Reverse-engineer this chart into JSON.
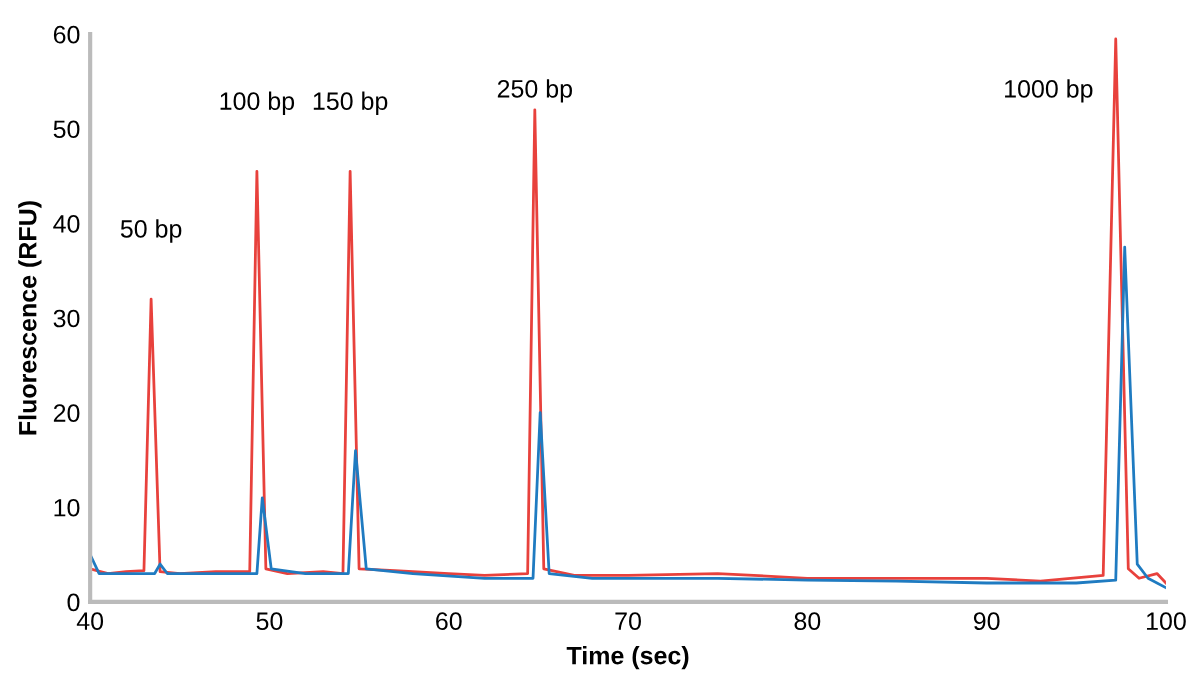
{
  "chart_data": {
    "type": "line",
    "xlabel": "Time (sec)",
    "ylabel": "Fluorescence (RFU)",
    "xlim": [
      40,
      100
    ],
    "xticks": [
      40,
      50,
      60,
      70,
      80,
      90,
      100
    ],
    "ylim": [
      0,
      60
    ],
    "yticks": [
      0,
      10,
      20,
      30,
      40,
      50,
      60
    ],
    "grid": false,
    "legend": false,
    "marker": "none",
    "line_style": "solid",
    "series": [
      {
        "color": "#e8413c",
        "x": [
          40,
          41,
          42,
          43,
          43.4,
          43.9,
          45,
          47,
          48.9,
          49.3,
          49.8,
          51,
          53,
          54.1,
          54.5,
          55,
          57,
          60,
          62,
          64.4,
          64.8,
          65.3,
          67,
          70,
          75,
          80,
          85,
          90,
          93,
          96.5,
          97.2,
          97.9,
          98.5,
          99.5,
          100
        ],
        "values": [
          3.5,
          3,
          3.2,
          3.3,
          32,
          3.2,
          3,
          3.2,
          3.2,
          45.5,
          3.5,
          3,
          3.2,
          3,
          45.5,
          3.5,
          3.3,
          3,
          2.8,
          3,
          52,
          3.5,
          2.8,
          2.8,
          3,
          2.5,
          2.5,
          2.5,
          2.2,
          2.8,
          59.5,
          3.5,
          2.5,
          3,
          2
        ]
      },
      {
        "color": "#1f7bc1",
        "x": [
          40,
          40.5,
          42,
          43.6,
          43.9,
          44.3,
          47,
          49.3,
          49.6,
          50.1,
          52,
          54.4,
          54.8,
          55.4,
          58,
          62,
          64.7,
          65.1,
          65.6,
          68,
          75,
          80,
          85,
          90,
          95,
          97.2,
          97.7,
          98.4,
          99,
          100
        ],
        "values": [
          5,
          3,
          3,
          3,
          4,
          3,
          3,
          3,
          11,
          3.5,
          3,
          3,
          16,
          3.5,
          3,
          2.5,
          2.5,
          20,
          3,
          2.5,
          2.5,
          2.3,
          2.2,
          2,
          2,
          2.3,
          37.5,
          4,
          2.5,
          1.5
        ]
      }
    ],
    "annotations": [
      {
        "text": "50 bp",
        "x": 43.4,
        "y": 32
      },
      {
        "text": "100 bp",
        "x": 49.3,
        "y": 45.5
      },
      {
        "text": "150 bp",
        "x": 54.5,
        "y": 45.5
      },
      {
        "text": "250 bp",
        "x": 64.8,
        "y": 52
      },
      {
        "text": "1000 bp",
        "x": 97.2,
        "y": 59.5
      }
    ]
  }
}
